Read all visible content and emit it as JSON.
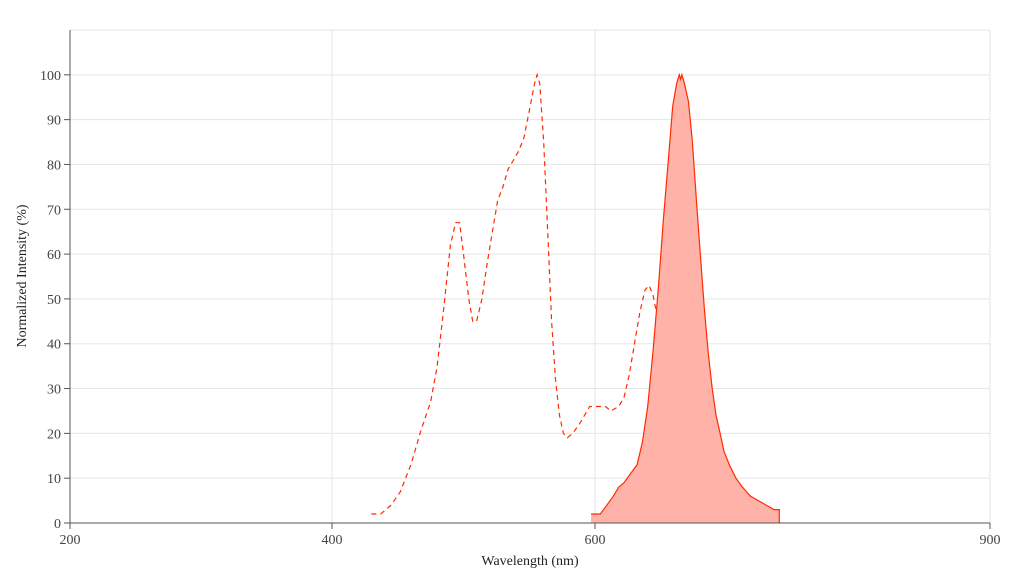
{
  "chart_data": {
    "type": "line",
    "title": "",
    "xlabel": "Wavelength (nm)",
    "ylabel": "Normalized Intensity (%)",
    "xlim": [
      200,
      900
    ],
    "ylim": [
      0,
      110
    ],
    "xticks": [
      200,
      400,
      600,
      900
    ],
    "yticks": [
      0,
      10,
      20,
      30,
      40,
      50,
      60,
      70,
      80,
      90,
      100
    ],
    "grid": true,
    "legend": "none",
    "series": [
      {
        "style": "dashed",
        "color": "#ff2a00",
        "fill": "none",
        "points": [
          [
            430,
            2
          ],
          [
            437,
            2
          ],
          [
            445,
            4
          ],
          [
            452,
            7
          ],
          [
            460,
            13
          ],
          [
            468,
            21
          ],
          [
            475,
            27
          ],
          [
            480,
            35
          ],
          [
            485,
            48
          ],
          [
            490,
            62
          ],
          [
            494,
            67
          ],
          [
            497,
            67
          ],
          [
            500,
            60
          ],
          [
            504,
            50
          ],
          [
            507,
            45
          ],
          [
            510,
            45
          ],
          [
            514,
            50
          ],
          [
            518,
            58
          ],
          [
            522,
            65
          ],
          [
            526,
            72
          ],
          [
            530,
            75
          ],
          [
            534,
            79
          ],
          [
            538,
            81
          ],
          [
            542,
            83
          ],
          [
            546,
            86
          ],
          [
            550,
            92
          ],
          [
            554,
            98
          ],
          [
            556,
            100
          ],
          [
            558,
            98
          ],
          [
            561,
            85
          ],
          [
            564,
            65
          ],
          [
            567,
            45
          ],
          [
            570,
            32
          ],
          [
            573,
            24
          ],
          [
            576,
            20
          ],
          [
            579,
            19
          ],
          [
            583,
            20
          ],
          [
            588,
            22
          ],
          [
            592,
            24
          ],
          [
            596,
            26
          ],
          [
            603,
            26
          ],
          [
            608,
            26
          ],
          [
            612,
            25
          ],
          [
            618,
            26
          ],
          [
            622,
            28
          ],
          [
            626,
            33
          ],
          [
            630,
            40
          ],
          [
            634,
            47
          ],
          [
            638,
            52
          ],
          [
            641,
            53
          ],
          [
            644,
            51
          ],
          [
            648,
            45
          ],
          [
            652,
            37
          ],
          [
            656,
            28
          ],
          [
            660,
            20
          ],
          [
            664,
            12
          ],
          [
            668,
            7
          ],
          [
            672,
            4
          ],
          [
            676,
            2
          ],
          [
            685,
            1
          ],
          [
            695,
            1
          ],
          [
            699,
            0
          ]
        ]
      },
      {
        "style": "solid",
        "color": "#ff2a00",
        "fill": "#ffb3a8",
        "points": [
          [
            597,
            2
          ],
          [
            604,
            2
          ],
          [
            609,
            4
          ],
          [
            614,
            6
          ],
          [
            618,
            8
          ],
          [
            622,
            9
          ],
          [
            627,
            11
          ],
          [
            632,
            13
          ],
          [
            636,
            18
          ],
          [
            640,
            26
          ],
          [
            644,
            38
          ],
          [
            648,
            52
          ],
          [
            652,
            68
          ],
          [
            656,
            82
          ],
          [
            659,
            93
          ],
          [
            662,
            98
          ],
          [
            664,
            100
          ],
          [
            665,
            99
          ],
          [
            666,
            100
          ],
          [
            668,
            98
          ],
          [
            671,
            94
          ],
          [
            674,
            85
          ],
          [
            677,
            72
          ],
          [
            680,
            60
          ],
          [
            683,
            48
          ],
          [
            686,
            38
          ],
          [
            689,
            30
          ],
          [
            692,
            24
          ],
          [
            695,
            20
          ],
          [
            698,
            16
          ],
          [
            702,
            13
          ],
          [
            707,
            10
          ],
          [
            712,
            8
          ],
          [
            718,
            6
          ],
          [
            724,
            5
          ],
          [
            730,
            4
          ],
          [
            736,
            3
          ],
          [
            740,
            3
          ],
          [
            740,
            0
          ]
        ]
      }
    ]
  }
}
